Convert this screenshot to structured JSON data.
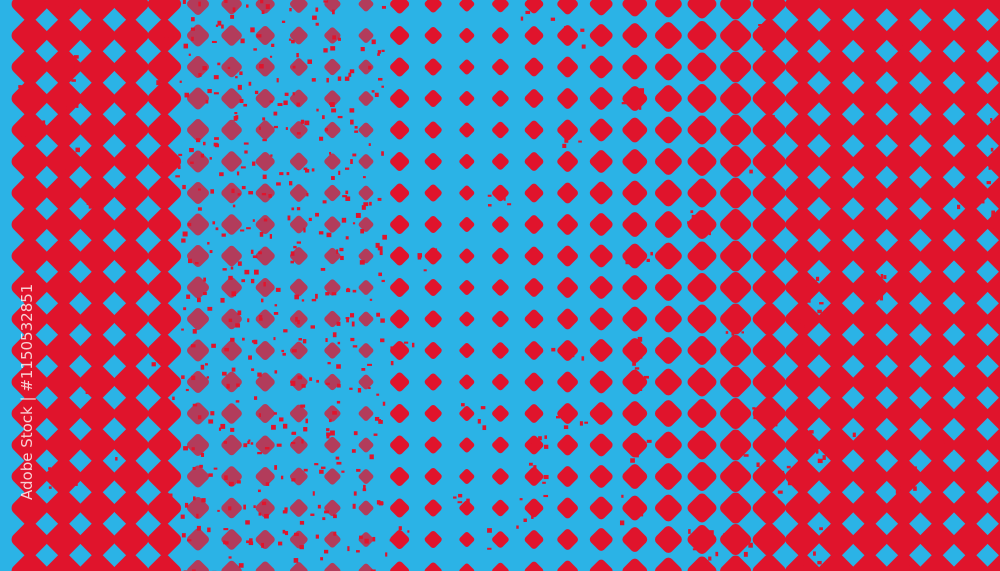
{
  "image": {
    "description_colors": {
      "background": "#2bb3e6",
      "dots": "#e0142c"
    },
    "pattern": "halftone diamonds, larger at edges, smaller toward center"
  },
  "watermark": {
    "text": "Adobe Stock | #1150532851"
  }
}
